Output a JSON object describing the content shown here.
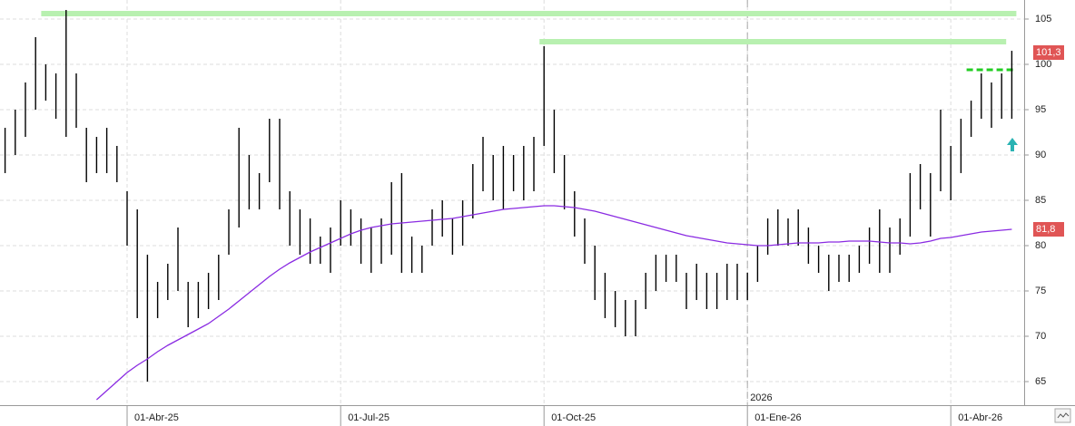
{
  "chart_data": {
    "type": "ohlc",
    "categories": [
      null,
      null,
      null,
      null,
      null,
      null,
      null,
      null,
      null,
      null,
      null,
      null,
      "01-Abr-25",
      null,
      null,
      null,
      null,
      null,
      null,
      null,
      null,
      null,
      null,
      null,
      null,
      null,
      null,
      null,
      null,
      null,
      null,
      null,
      null,
      "01-Jul-25",
      null,
      null,
      null,
      null,
      null,
      null,
      null,
      null,
      null,
      null,
      null,
      null,
      null,
      null,
      null,
      null,
      null,
      null,
      null,
      "01-Oct-25",
      null,
      null,
      null,
      null,
      null,
      null,
      null,
      null,
      null,
      null,
      null,
      null,
      null,
      null,
      null,
      null,
      null,
      null,
      null,
      "01-Ene-26",
      null,
      null,
      null,
      null,
      null,
      null,
      null,
      null,
      null,
      null,
      null,
      null,
      null,
      null,
      null,
      null,
      null,
      null,
      null,
      "01-Abr-26",
      null,
      null,
      null,
      null,
      null,
      null
    ],
    "low": [
      88,
      90,
      92,
      95,
      96,
      94,
      92,
      93,
      87,
      88,
      88,
      87,
      80,
      72,
      65,
      72,
      74,
      75,
      71,
      72,
      73,
      74,
      79,
      82,
      84,
      84,
      87,
      84,
      80,
      79,
      78,
      78,
      77,
      80,
      80,
      78,
      77,
      78,
      79,
      77,
      77,
      77,
      80,
      81,
      79,
      80,
      83,
      86,
      85,
      84,
      86,
      85,
      86,
      91,
      88,
      84,
      81,
      78,
      74,
      72,
      71,
      70,
      70,
      73,
      75,
      76,
      76,
      73,
      74,
      73,
      73,
      74,
      74,
      74,
      76,
      79,
      80,
      80,
      80,
      78,
      77,
      75,
      76,
      76,
      77,
      78,
      77,
      77,
      79,
      81,
      84,
      81,
      86,
      85,
      88,
      92,
      94,
      93,
      94,
      94
    ],
    "high": [
      93,
      95,
      98,
      103,
      100,
      99,
      106,
      99,
      93,
      92,
      93,
      91,
      86,
      84,
      79,
      76,
      78,
      82,
      76,
      76,
      77,
      79,
      84,
      93,
      90,
      88,
      94,
      94,
      86,
      84,
      83,
      81,
      82,
      85,
      84,
      83,
      82,
      83,
      87,
      88,
      81,
      80,
      84,
      85,
      83,
      85,
      89,
      92,
      90,
      91,
      90,
      91,
      92,
      102,
      95,
      90,
      86,
      83,
      80,
      77,
      75,
      74,
      74,
      77,
      79,
      79,
      79,
      77,
      78,
      77,
      77,
      78,
      78,
      77,
      80,
      83,
      84,
      83,
      84,
      82,
      80,
      79,
      79,
      79,
      80,
      82,
      84,
      82,
      83,
      88,
      89,
      88,
      95,
      91,
      94,
      96,
      99,
      98,
      99,
      101.5
    ],
    "bar_color": "#000000",
    "ma": [
      null,
      null,
      null,
      null,
      null,
      null,
      null,
      null,
      null,
      63,
      64,
      65,
      66,
      66.8,
      67.5,
      68.3,
      69,
      69.6,
      70.2,
      70.8,
      71.4,
      72.2,
      73,
      73.9,
      74.8,
      75.7,
      76.6,
      77.4,
      78.1,
      78.7,
      79.3,
      79.8,
      80.3,
      80.8,
      81.3,
      81.7,
      82,
      82.2,
      82.4,
      82.5,
      82.6,
      82.7,
      82.8,
      82.9,
      83,
      83.2,
      83.4,
      83.6,
      83.8,
      84,
      84.1,
      84.2,
      84.3,
      84.4,
      84.4,
      84.3,
      84.2,
      84,
      83.8,
      83.5,
      83.2,
      82.9,
      82.6,
      82.3,
      82,
      81.7,
      81.4,
      81.1,
      80.9,
      80.7,
      80.5,
      80.3,
      80.2,
      80.1,
      80,
      80,
      80.1,
      80.2,
      80.3,
      80.3,
      80.3,
      80.4,
      80.4,
      80.5,
      80.5,
      80.5,
      80.4,
      80.3,
      80.3,
      80.2,
      80.3,
      80.5,
      80.8,
      80.9,
      81.1,
      81.3,
      81.5,
      81.6,
      81.7,
      81.8
    ],
    "ma_color": "#8a2be2",
    "ylim": [
      62.4,
      107.1
    ],
    "yticks": [
      65,
      70,
      75,
      80,
      85,
      90,
      95,
      100,
      105
    ],
    "grid": true,
    "reference_lines": [
      {
        "value": 105.6,
        "start": 4,
        "end": 99,
        "style": "solid",
        "color": "#b8f0b0"
      },
      {
        "value": 102.5,
        "start": 53,
        "end": 98,
        "style": "solid",
        "color": "#b8f0b0"
      },
      {
        "value": 99.4,
        "start": 95,
        "end": 99,
        "style": "dashed",
        "color": "#22cc22"
      }
    ],
    "price_tags": [
      {
        "value": 101.3,
        "label": "101,3"
      },
      {
        "value": 81.8,
        "label": "81,8"
      }
    ],
    "annotations": [
      {
        "text": "2026",
        "category": 73
      }
    ]
  }
}
